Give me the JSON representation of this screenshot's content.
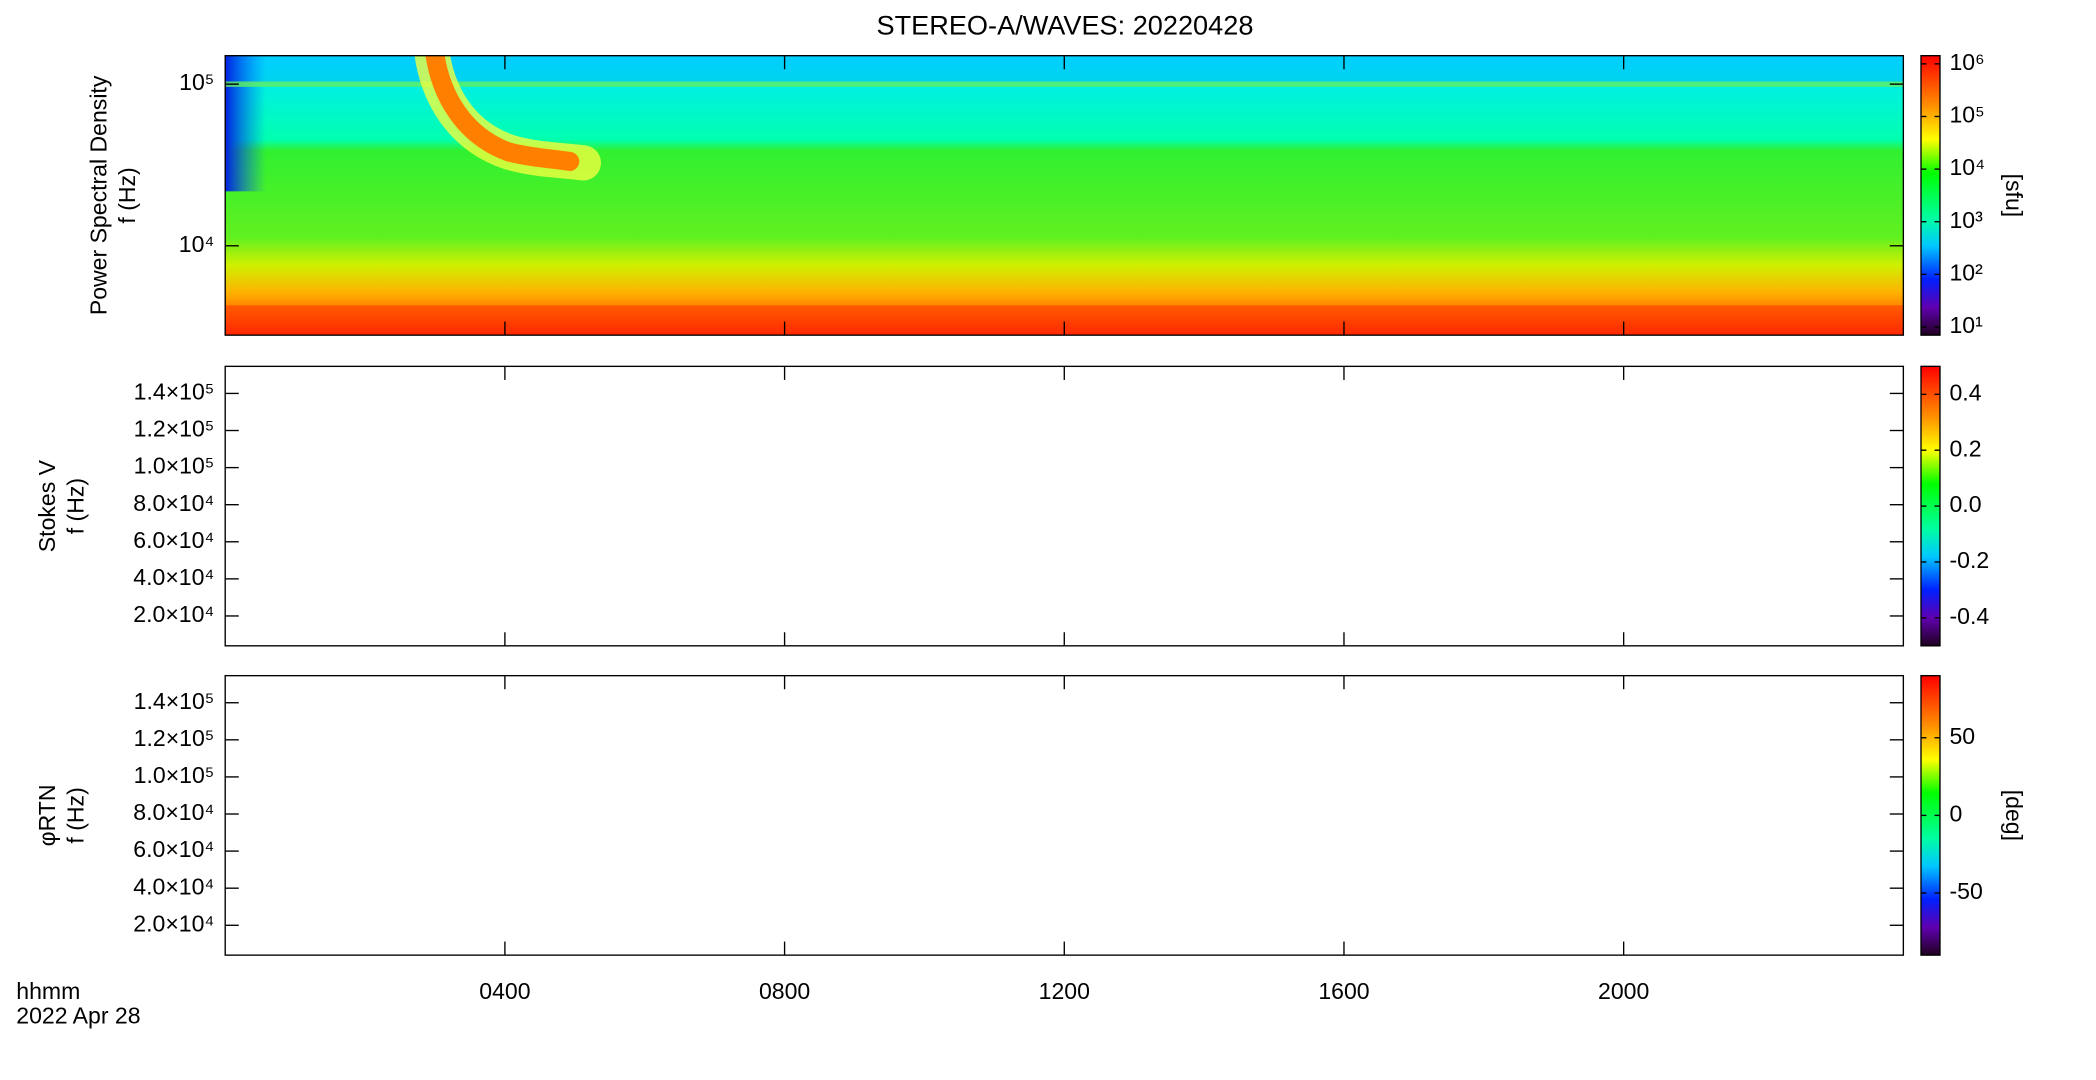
{
  "title": "STEREO-A/WAVES: 20220428",
  "x_axis": {
    "label": "hhmm",
    "date": "2022 Apr 28",
    "xlim": [
      0,
      24
    ],
    "xticks": [
      {
        "value": 4,
        "label": "0400"
      },
      {
        "value": 8,
        "label": "0800"
      },
      {
        "value": 12,
        "label": "1200"
      },
      {
        "value": 16,
        "label": "1600"
      },
      {
        "value": 20,
        "label": "2000"
      }
    ]
  },
  "chart_data": [
    {
      "type": "spectrogram",
      "ylabel": [
        "Power Spectral Density",
        "f (Hz)"
      ],
      "ylog": true,
      "ylim": [
        2800,
        150000
      ],
      "yticks": [
        {
          "value": 10000,
          "label": "10⁴"
        },
        {
          "value": 100000,
          "label": "10⁵"
        }
      ],
      "colorbar": {
        "label": "[sfu]",
        "log": true,
        "zlim": [
          7,
          1430000
        ],
        "zticks": [
          {
            "value": 10,
            "label": "10¹"
          },
          {
            "value": 100,
            "label": "10²"
          },
          {
            "value": 1000,
            "label": "10³"
          },
          {
            "value": 10000,
            "label": "10⁴"
          },
          {
            "value": 100000,
            "label": "10⁵"
          },
          {
            "value": 1000000,
            "label": "10⁶"
          }
        ]
      }
    },
    {
      "type": "spectrogram",
      "ylabel": [
        "Stokes V",
        "f (Hz)"
      ],
      "ylog": false,
      "ylim": [
        3900,
        154600
      ],
      "yticks": [
        {
          "value": 20000,
          "label": "2.0×10⁴"
        },
        {
          "value": 40000,
          "label": "4.0×10⁴"
        },
        {
          "value": 60000,
          "label": "6.0×10⁴"
        },
        {
          "value": 80000,
          "label": "8.0×10⁴"
        },
        {
          "value": 100000,
          "label": "1.0×10⁵"
        },
        {
          "value": 120000,
          "label": "1.2×10⁵"
        },
        {
          "value": 140000,
          "label": "1.4×10⁵"
        }
      ],
      "colorbar": {
        "log": false,
        "zlim": [
          -0.5,
          0.5
        ],
        "zticks": [
          {
            "value": -0.4,
            "label": "-0.4"
          },
          -0.2,
          {
            "value": 0,
            "label": "0.0"
          },
          0.2,
          0.4
        ]
      }
    },
    {
      "type": "spectrogram",
      "ylabel": [
        "φRTN",
        "f (Hz)"
      ],
      "ylog": false,
      "ylim": [
        3900,
        154600
      ],
      "yticks": [
        {
          "value": 20000,
          "label": "2.0×10⁴"
        },
        {
          "value": 40000,
          "label": "4.0×10⁴"
        },
        {
          "value": 60000,
          "label": "6.0×10⁴"
        },
        {
          "value": 80000,
          "label": "8.0×10⁴"
        },
        {
          "value": 100000,
          "label": "1.0×10⁵"
        },
        {
          "value": 120000,
          "label": "1.2×10⁵"
        },
        {
          "value": 140000,
          "label": "1.4×10⁵"
        }
      ],
      "colorbar": {
        "label": "[deg]",
        "log": false,
        "zlim": [
          -90,
          90
        ],
        "zticks": [
          -50,
          0,
          50
        ]
      }
    }
  ]
}
